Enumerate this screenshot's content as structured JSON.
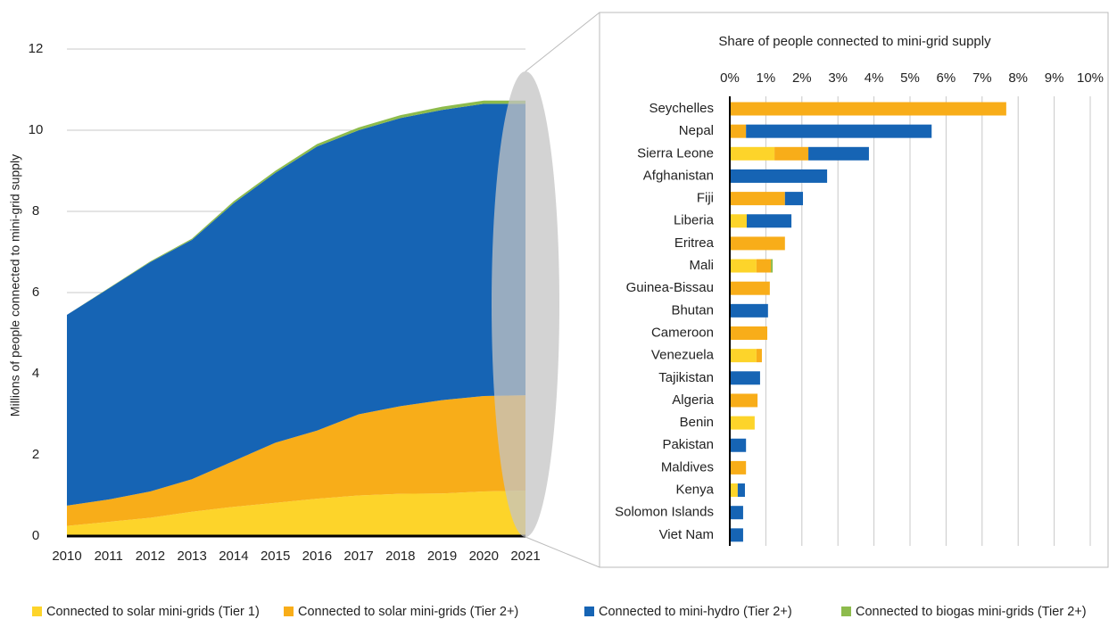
{
  "chart_data": [
    {
      "type": "area",
      "stacked": true,
      "y_label": "Millions of people connected to mini-grid supply",
      "x": [
        2010,
        2011,
        2012,
        2013,
        2014,
        2015,
        2016,
        2017,
        2018,
        2019,
        2020,
        2021
      ],
      "xlim": [
        2010,
        2021
      ],
      "xticks": [
        2010,
        2011,
        2012,
        2013,
        2014,
        2015,
        2016,
        2017,
        2018,
        2019,
        2020,
        2021
      ],
      "ylim": [
        0,
        12
      ],
      "yticks": [
        0,
        2,
        4,
        6,
        8,
        10,
        12
      ],
      "grid": true,
      "series": [
        {
          "name": "Connected to solar mini-grids (Tier 1)",
          "color": "#fdd42a",
          "values": [
            0.25,
            0.35,
            0.45,
            0.6,
            0.72,
            0.82,
            0.92,
            1.0,
            1.04,
            1.05,
            1.1,
            1.12
          ]
        },
        {
          "name": "Connected to solar mini-grids (Tier 2+)",
          "color": "#f8ad19",
          "values": [
            0.5,
            0.55,
            0.65,
            0.8,
            1.13,
            1.48,
            1.68,
            2.0,
            2.16,
            2.3,
            2.35,
            2.35
          ]
        },
        {
          "name": "Connected to mini-hydro (Tier 2+)",
          "color": "#1664b4",
          "values": [
            4.7,
            5.2,
            5.65,
            5.9,
            6.35,
            6.65,
            7.0,
            7.0,
            7.1,
            7.15,
            7.2,
            7.18
          ]
        },
        {
          "name": "Connected to biogas mini-grids (Tier 2+)",
          "color": "#8dbb4c",
          "values": [
            0,
            0.01,
            0.02,
            0.03,
            0.05,
            0.05,
            0.06,
            0.07,
            0.07,
            0.08,
            0.08,
            0.08
          ]
        }
      ]
    },
    {
      "type": "hbar",
      "stacked": true,
      "title": "Share of people connected to mini-grid supply",
      "categories": [
        "Seychelles",
        "Nepal",
        "Sierra Leone",
        "Afghanistan",
        "Fiji",
        "Liberia",
        "Eritrea",
        "Mali",
        "Guinea-Bissau",
        "Bhutan",
        "Cameroon",
        "Venezuela",
        "Tajikistan",
        "Algeria",
        "Benin",
        "Pakistan",
        "Maldives",
        "Kenya",
        "Solomon Islands",
        "Viet Nam"
      ],
      "xlim": [
        0,
        10
      ],
      "xticks": [
        {
          "value": 0,
          "label": "0%"
        },
        {
          "value": 1,
          "label": "1%"
        },
        {
          "value": 2,
          "label": "2%"
        },
        {
          "value": 3,
          "label": "3%"
        },
        {
          "value": 4,
          "label": "4%"
        },
        {
          "value": 5,
          "label": "5%"
        },
        {
          "value": 6,
          "label": "6%"
        },
        {
          "value": 7,
          "label": "7%"
        },
        {
          "value": 8,
          "label": "8%"
        },
        {
          "value": 9,
          "label": "9%"
        },
        {
          "value": 10,
          "label": "10%"
        }
      ],
      "grid": true,
      "series": [
        {
          "color": "#fdd42a",
          "values": [
            0,
            0,
            1.24,
            0,
            0,
            0.47,
            0,
            0.74,
            0,
            0,
            0,
            0.74,
            0,
            0,
            0.69,
            0,
            0,
            0.22,
            0,
            0
          ]
        },
        {
          "color": "#f8ad19",
          "values": [
            7.67,
            0.45,
            0.94,
            0,
            1.53,
            0,
            1.53,
            0.4,
            1.11,
            0,
            1.04,
            0.15,
            0,
            0.77,
            0,
            0,
            0.45,
            0,
            0,
            0
          ]
        },
        {
          "color": "#1664b4",
          "values": [
            0,
            5.15,
            1.68,
            2.7,
            0.5,
            1.24,
            0,
            0,
            0,
            1.06,
            0,
            0,
            0.84,
            0,
            0,
            0.45,
            0,
            0.2,
            0.37,
            0.37
          ]
        },
        {
          "color": "#8dbb4c",
          "values": [
            0,
            0,
            0,
            0,
            0,
            0,
            0,
            0.05,
            0,
            0,
            0,
            0,
            0,
            0,
            0,
            0,
            0,
            0,
            0,
            0
          ]
        }
      ]
    }
  ]
}
